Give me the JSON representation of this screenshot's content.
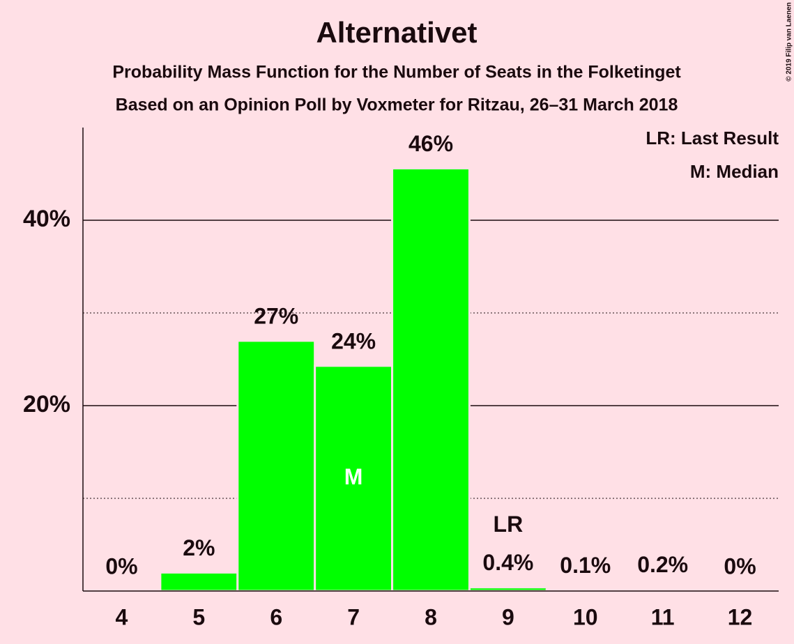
{
  "chart_data": {
    "type": "bar",
    "title": "Alternativet",
    "subtitle": "Probability Mass Function for the Number of Seats in the Folketinget",
    "subtitle2": "Based on an Opinion Poll by Voxmeter for Ritzau, 26–31 March 2018",
    "copyright": "© 2019 Filip van Laenen",
    "legend": [
      "LR: Last Result",
      "M: Median"
    ],
    "categories": [
      "4",
      "5",
      "6",
      "7",
      "8",
      "9",
      "10",
      "11",
      "12"
    ],
    "values": [
      0,
      2.0,
      27.0,
      24.3,
      45.6,
      0.4,
      0.1,
      0.2,
      0
    ],
    "value_labels": [
      "0%",
      "2%",
      "27%",
      "24%",
      "46%",
      "0.4%",
      "0.1%",
      "0.2%",
      "0%"
    ],
    "color": "#00ff00",
    "ylim": [
      0,
      50
    ],
    "yticks": [
      {
        "value": 20,
        "label": "20%"
      },
      {
        "value": 40,
        "label": "40%"
      }
    ],
    "minor_yticks": [
      10,
      30
    ],
    "annotations": [
      {
        "label": "M",
        "category": "7"
      },
      {
        "label": "LR",
        "category": "9"
      }
    ]
  }
}
